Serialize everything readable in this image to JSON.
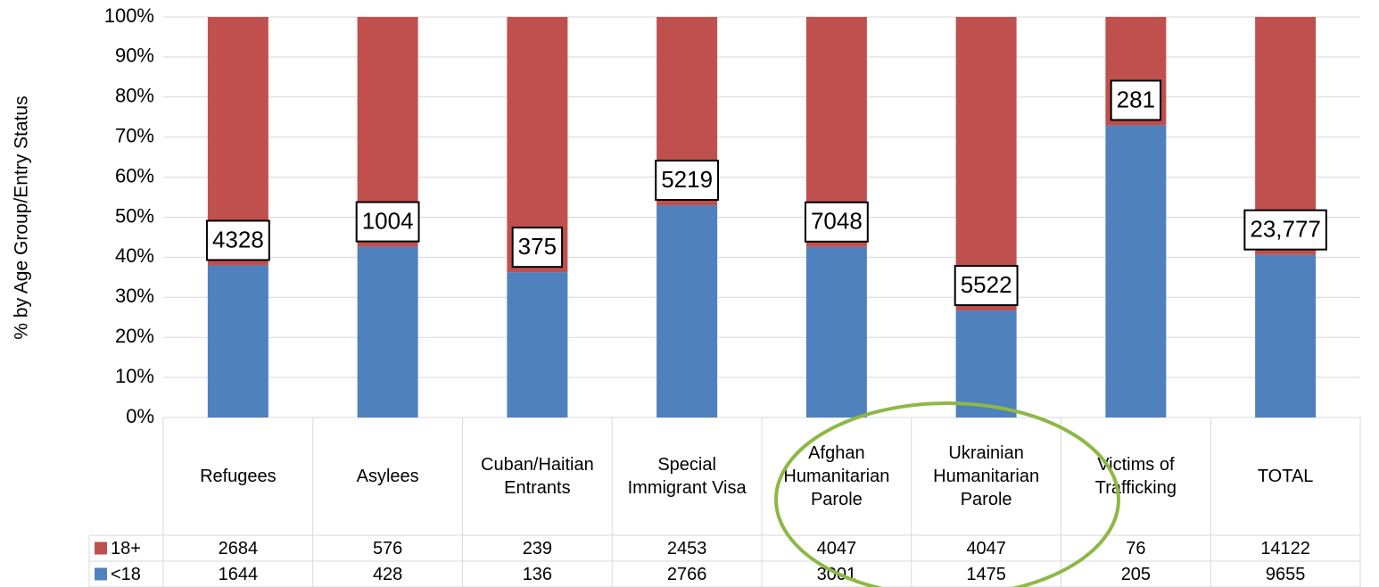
{
  "chart_data": {
    "type": "stacked-bar-100",
    "y_axis_label": "% by Age Group/Entry Status",
    "categories": [
      "Refugees",
      "Asylees",
      "Cuban/Haitian Entrants",
      "Special Immigrant Visa",
      "Afghan Humanitarian Parole",
      "Ukrainian Humanitarian Parole",
      "Victims of Trafficking",
      "TOTAL"
    ],
    "series": [
      {
        "name": "18+",
        "color": "#c0504d",
        "values": [
          2684,
          576,
          239,
          2453,
          4047,
          4047,
          76,
          14122
        ]
      },
      {
        "name": "<18",
        "color": "#4f81bd",
        "values": [
          1644,
          428,
          136,
          2766,
          3001,
          1475,
          205,
          9655
        ]
      }
    ],
    "totals": {
      "values": [
        4328,
        1004,
        375,
        5219,
        7048,
        5522,
        281,
        23777
      ],
      "value_labels": [
        "4328",
        "1004",
        "375",
        "5219",
        "7048",
        "5522",
        "281",
        "23,777"
      ]
    },
    "ylim": [
      0,
      100
    ],
    "yticks": [
      {
        "value": 0,
        "label": "0%"
      },
      {
        "value": 10,
        "label": "10%"
      },
      {
        "value": 20,
        "label": "20%"
      },
      {
        "value": 30,
        "label": "30%"
      },
      {
        "value": 40,
        "label": "40%"
      },
      {
        "value": 50,
        "label": "50%"
      },
      {
        "value": 60,
        "label": "60%"
      },
      {
        "value": 70,
        "label": "70%"
      },
      {
        "value": 80,
        "label": "80%"
      },
      {
        "value": 90,
        "label": "90%"
      },
      {
        "value": 100,
        "label": "100%"
      }
    ],
    "grid": true
  }
}
